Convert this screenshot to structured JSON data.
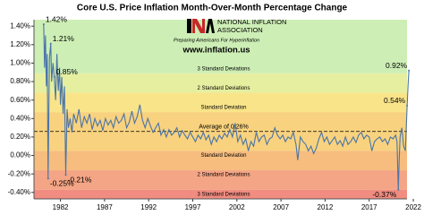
{
  "chart_data": {
    "type": "line",
    "title": "Core U.S. Price Inflation Month-Over-Month Percentage Change",
    "logo": {
      "name_line1": "NATIONAL INFLATION",
      "name_line2": "ASSOCIATION",
      "tagline": "Preparing Americans For Hyperinflation",
      "url": "www.inflation.us"
    },
    "color": "#4a74a8",
    "xlim": [
      1979,
      2022.3
    ],
    "xticks": [
      1982,
      1987,
      1992,
      1997,
      2002,
      2007,
      2012,
      2017,
      2022
    ],
    "ylim": [
      -0.47,
      1.47
    ],
    "yticks": [
      {
        "value": -0.4,
        "label": "-0.40%"
      },
      {
        "value": -0.2,
        "label": "-0.20%"
      },
      {
        "value": 0,
        "label": "0.00%"
      },
      {
        "value": 0.2,
        "label": "0.20%"
      },
      {
        "value": 0.4,
        "label": "0.40%"
      },
      {
        "value": 0.6,
        "label": "0.60%"
      },
      {
        "value": 0.8,
        "label": "0.80%"
      },
      {
        "value": 1.0,
        "label": "1.00%"
      },
      {
        "value": 1.2,
        "label": "1.20%"
      },
      {
        "value": 1.4,
        "label": "1.40%"
      }
    ],
    "average": {
      "value": 0.26,
      "label": "Average of 0.26%"
    },
    "bands": [
      {
        "label": "3 Standard Deviations",
        "color": "#f08c80"
      },
      {
        "from": -0.37,
        "label": "2 Standard Deviations",
        "color": "#f4a585"
      },
      {
        "from": -0.16,
        "label": "Standard Deviation",
        "color": "#f6bd7f"
      },
      {
        "from": 0.05,
        "color": "#f8d27e"
      },
      {
        "from": 0.47,
        "label": "Standard Deviation",
        "color": "#f9e48a"
      },
      {
        "from": 0.68,
        "label": "2 Standard Deviations",
        "color": "#e6efa0"
      },
      {
        "from": 0.89,
        "label": "3 Standard Deviations",
        "color": "#cdeeb5"
      }
    ],
    "annotations": [
      {
        "x": 1980.1,
        "value": 1.42,
        "label": "1.42%"
      },
      {
        "x": 1980.9,
        "value": 1.21,
        "label": "1.21%"
      },
      {
        "x": 1981.3,
        "value": 0.85,
        "label": "0.85%"
      },
      {
        "x": 1980.6,
        "value": -0.25,
        "label": "-0.25%"
      },
      {
        "x": 1982.6,
        "value": -0.21,
        "label": "-0.21%"
      },
      {
        "x": 2021.3,
        "value": 0.54,
        "label": "0.54%"
      },
      {
        "x": 2021.5,
        "value": 0.92,
        "label": "0.92%"
      },
      {
        "x": 2020.3,
        "value": -0.37,
        "label": "-0.37%"
      }
    ],
    "x": [
      1980.1,
      1980.2,
      1980.3,
      1980.4,
      1980.5,
      1980.6,
      1980.75,
      1980.9,
      1981.0,
      1981.15,
      1981.3,
      1981.45,
      1981.6,
      1981.75,
      1981.9,
      1982.0,
      1982.15,
      1982.3,
      1982.45,
      1982.6,
      1982.75,
      1982.9,
      1983.1,
      1983.3,
      1983.5,
      1983.8,
      1984.1,
      1984.4,
      1984.7,
      1985.0,
      1985.3,
      1985.6,
      1985.9,
      1986.2,
      1986.5,
      1986.8,
      1987.1,
      1987.4,
      1987.7,
      1988.0,
      1988.3,
      1988.6,
      1988.9,
      1989.2,
      1989.5,
      1989.8,
      1990.1,
      1990.4,
      1990.7,
      1991.0,
      1991.3,
      1991.6,
      1991.9,
      1992.2,
      1992.5,
      1992.8,
      1993.1,
      1993.4,
      1993.7,
      1994.0,
      1994.3,
      1994.6,
      1994.9,
      1995.2,
      1995.5,
      1995.8,
      1996.1,
      1996.4,
      1996.7,
      1997.0,
      1997.3,
      1997.6,
      1997.9,
      1998.2,
      1998.5,
      1998.8,
      1999.1,
      1999.4,
      1999.7,
      2000.0,
      2000.3,
      2000.6,
      2000.9,
      2001.2,
      2001.5,
      2001.8,
      2002.1,
      2002.4,
      2002.7,
      2003.0,
      2003.3,
      2003.6,
      2003.9,
      2004.2,
      2004.5,
      2004.8,
      2005.1,
      2005.4,
      2005.7,
      2006.0,
      2006.3,
      2006.6,
      2006.9,
      2007.2,
      2007.5,
      2007.8,
      2008.1,
      2008.4,
      2008.7,
      2008.9,
      2009.2,
      2009.5,
      2009.8,
      2010.1,
      2010.4,
      2010.7,
      2011.0,
      2011.3,
      2011.6,
      2011.9,
      2012.2,
      2012.5,
      2012.8,
      2013.1,
      2013.4,
      2013.7,
      2014.0,
      2014.3,
      2014.6,
      2014.9,
      2015.2,
      2015.5,
      2015.8,
      2016.1,
      2016.4,
      2016.7,
      2017.0,
      2017.3,
      2017.6,
      2017.9,
      2018.2,
      2018.5,
      2018.8,
      2019.1,
      2019.4,
      2019.7,
      2020.0,
      2020.15,
      2020.3,
      2020.4,
      2020.5,
      2020.7,
      2020.9,
      2021.1,
      2021.2,
      2021.3,
      2021.4,
      2021.5
    ],
    "values": [
      1.42,
      0.95,
      1.3,
      0.75,
      1.1,
      -0.25,
      1.05,
      1.21,
      0.8,
      1.0,
      0.85,
      0.6,
      1.1,
      0.7,
      0.95,
      0.55,
      0.85,
      0.45,
      0.75,
      -0.21,
      0.5,
      0.3,
      0.4,
      0.25,
      0.45,
      0.35,
      0.5,
      0.3,
      0.42,
      0.35,
      0.45,
      0.28,
      0.4,
      0.32,
      0.38,
      0.27,
      0.4,
      0.33,
      0.38,
      0.3,
      0.42,
      0.35,
      0.38,
      0.45,
      0.3,
      0.36,
      0.48,
      0.35,
      0.42,
      0.55,
      0.38,
      0.3,
      0.4,
      0.32,
      0.25,
      0.3,
      0.35,
      0.22,
      0.28,
      0.2,
      0.28,
      0.22,
      0.25,
      0.3,
      0.2,
      0.27,
      0.22,
      0.18,
      0.25,
      0.2,
      0.15,
      0.22,
      0.18,
      0.25,
      0.17,
      0.22,
      0.12,
      0.2,
      0.15,
      0.22,
      0.18,
      0.24,
      0.2,
      0.28,
      0.2,
      0.35,
      0.15,
      0.22,
      0.12,
      0.18,
      0.05,
      0.15,
      0.1,
      0.25,
      0.15,
      0.2,
      0.22,
      0.12,
      0.18,
      0.2,
      0.3,
      0.22,
      0.18,
      0.22,
      0.15,
      0.2,
      0.18,
      0.25,
      0.12,
      -0.05,
      0.2,
      0.15,
      0.12,
      0.05,
      0.1,
      0.02,
      0.08,
      0.18,
      0.25,
      0.15,
      0.2,
      0.12,
      0.16,
      0.2,
      0.12,
      0.16,
      0.1,
      0.2,
      0.12,
      0.15,
      0.2,
      0.14,
      0.22,
      0.25,
      0.18,
      0.22,
      0.2,
      0.05,
      0.15,
      0.18,
      0.2,
      0.15,
      0.18,
      0.12,
      0.2,
      0.18,
      0.22,
      0.15,
      -0.37,
      -0.05,
      0.2,
      0.3,
      0.1,
      0.05,
      0.3,
      0.54,
      0.75,
      0.92
    ]
  }
}
